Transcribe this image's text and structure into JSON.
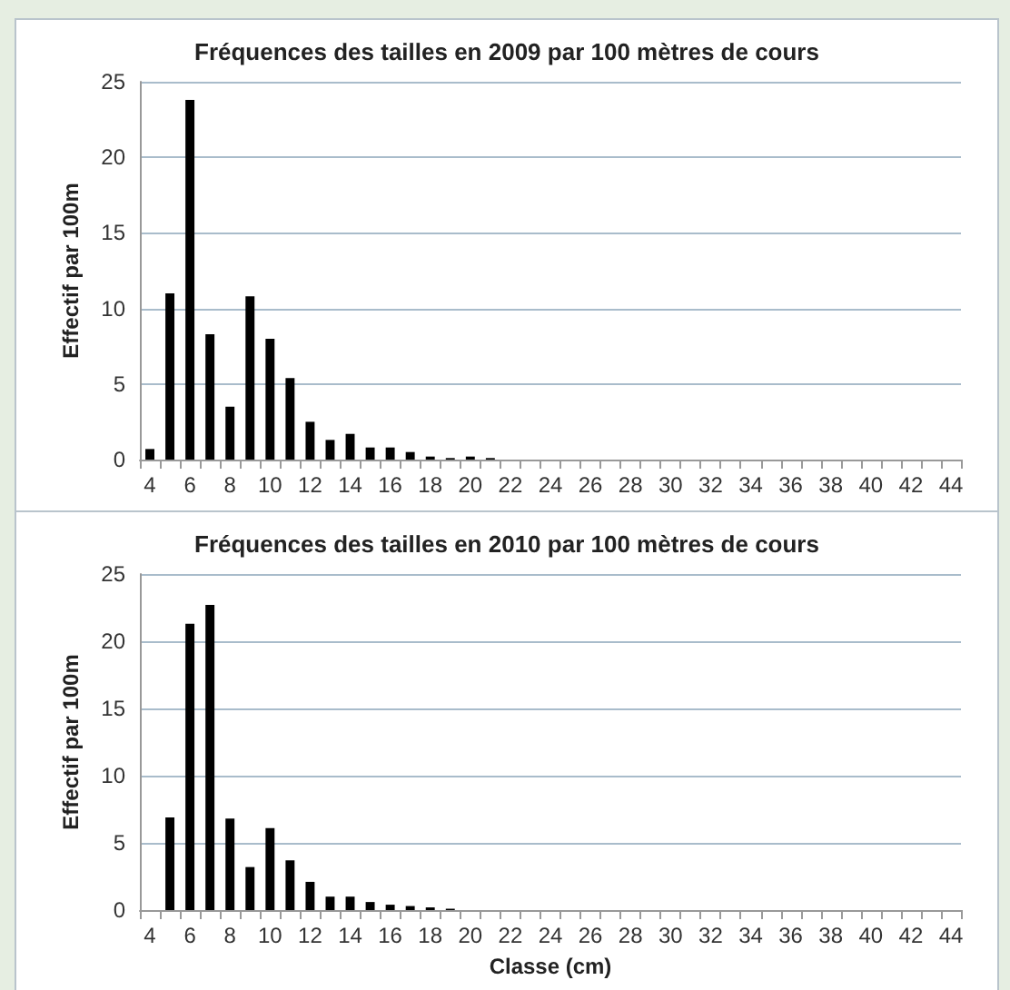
{
  "chart_data": [
    {
      "type": "bar",
      "title": "Fréquences des tailles en 2009 par 100 mètres de cours",
      "ylabel": "Effectif par 100m",
      "categories": [
        "4",
        null,
        "6",
        null,
        "8",
        null,
        "10",
        null,
        "12",
        null,
        "14",
        null,
        "16",
        null,
        "18",
        null,
        "20",
        null,
        "22",
        null,
        "24",
        null,
        "26",
        null,
        "28",
        null,
        "30",
        null,
        "32",
        null,
        "34",
        null,
        "36",
        null,
        "38",
        null,
        "40",
        null,
        "42",
        null,
        "44"
      ],
      "values": [
        0.7,
        11,
        23.8,
        8.3,
        3.5,
        10.8,
        8,
        5.4,
        2.5,
        1.3,
        1.7,
        0.8,
        0.8,
        0.5,
        0.2,
        0.1,
        0.2,
        0.1,
        0,
        0,
        0,
        0,
        0,
        0,
        0,
        0,
        0,
        0,
        0,
        0,
        0,
        0,
        0,
        0,
        0,
        0,
        0,
        0,
        0,
        0,
        0
      ],
      "color": "#000000",
      "ylim": [
        0,
        25
      ],
      "yticks": [
        0,
        5,
        10,
        15,
        20,
        25
      ],
      "grid": "y"
    },
    {
      "type": "bar",
      "title": "Fréquences des tailles en 2010 par 100 mètres de cours",
      "xlabel": "Classe (cm)",
      "ylabel": "Effectif par 100m",
      "categories": [
        "4",
        null,
        "6",
        null,
        "8",
        null,
        "10",
        null,
        "12",
        null,
        "14",
        null,
        "16",
        null,
        "18",
        null,
        "20",
        null,
        "22",
        null,
        "24",
        null,
        "26",
        null,
        "28",
        null,
        "30",
        null,
        "32",
        null,
        "34",
        null,
        "36",
        null,
        "38",
        null,
        "40",
        null,
        "42",
        null,
        "44"
      ],
      "values": [
        0,
        6.9,
        21.3,
        22.7,
        6.8,
        3.2,
        6.1,
        3.7,
        2.1,
        1,
        1,
        0.6,
        0.4,
        0.3,
        0.2,
        0.1,
        0,
        0,
        0,
        0,
        0,
        0,
        0,
        0,
        0,
        0,
        0,
        0,
        0,
        0,
        0,
        0,
        0,
        0,
        0,
        0,
        0,
        0,
        0,
        0,
        0
      ],
      "color": "#000000",
      "ylim": [
        0,
        25
      ],
      "yticks": [
        0,
        5,
        10,
        15,
        20,
        25
      ],
      "grid": "y"
    }
  ]
}
